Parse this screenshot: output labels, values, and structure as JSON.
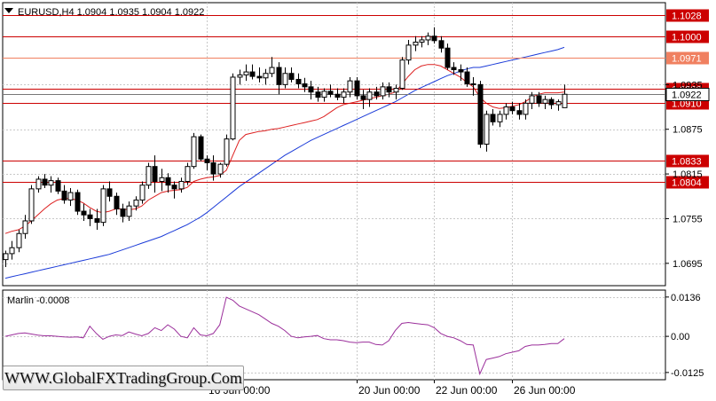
{
  "chart_data": [
    {
      "type": "candlestick",
      "title": "EURUSD,H4  1.0904 1.0935 1.0904 1.0922",
      "symbol": "EURUSD",
      "timeframe": "H4",
      "ohlc_header": "1.0904 1.0935 1.0904 1.0922",
      "ylim": [
        1.0665,
        1.1045
      ],
      "y_ticks": [
        "1.0695",
        "1.0755",
        "1.0815",
        "1.0875",
        "1.0935"
      ],
      "x_ticks": [
        "16 Jun 00:00",
        "20 Jun 00:00",
        "22 Jun 00:00",
        "26 Jun 00:00"
      ],
      "current_price_label": "1.0922",
      "levels": [
        {
          "value": 1.1028,
          "label": "1.1028",
          "color": "#cc0000"
        },
        {
          "value": 1.1,
          "label": "1.1000",
          "color": "#cc0000"
        },
        {
          "value": 1.0971,
          "label": "1.0971",
          "color": "#f08060"
        },
        {
          "value": 1.093,
          "label": "1.0930",
          "color": "#cc0000"
        },
        {
          "value": 1.091,
          "label": "1.0910",
          "color": "#cc0000"
        },
        {
          "value": 1.0833,
          "label": "1.0833",
          "color": "#cc0000"
        },
        {
          "value": 1.0804,
          "label": "1.0804",
          "color": "#cc0000"
        }
      ],
      "candles": [
        [
          1.07,
          1.0712,
          1.069,
          1.0708
        ],
        [
          1.0708,
          1.0725,
          1.07,
          1.0716
        ],
        [
          1.0716,
          1.074,
          1.071,
          1.0735
        ],
        [
          1.0735,
          1.076,
          1.0728,
          1.0752
        ],
        [
          1.0752,
          1.08,
          1.0748,
          1.0795
        ],
        [
          1.0795,
          1.0812,
          1.079,
          1.0808
        ],
        [
          1.0808,
          1.0815,
          1.0796,
          1.08
        ],
        [
          1.08,
          1.0812,
          1.079,
          1.0806
        ],
        [
          1.0806,
          1.081,
          1.0788,
          1.0792
        ],
        [
          1.0792,
          1.08,
          1.0775,
          1.078
        ],
        [
          1.078,
          1.0796,
          1.0772,
          1.079
        ],
        [
          1.079,
          1.0794,
          1.076,
          1.0765
        ],
        [
          1.0765,
          1.0775,
          1.0752,
          1.076
        ],
        [
          1.076,
          1.0768,
          1.0745,
          1.0755
        ],
        [
          1.0755,
          1.0768,
          1.074,
          1.075
        ],
        [
          1.075,
          1.08,
          1.0745,
          1.0795
        ],
        [
          1.0795,
          1.0805,
          1.0778,
          1.0785
        ],
        [
          1.0785,
          1.079,
          1.076,
          1.0768
        ],
        [
          1.0768,
          1.0775,
          1.075,
          1.0758
        ],
        [
          1.0758,
          1.0778,
          1.0752,
          1.0772
        ],
        [
          1.0772,
          1.0785,
          1.0766,
          1.078
        ],
        [
          1.078,
          1.0805,
          1.0775,
          1.08
        ],
        [
          1.08,
          1.083,
          1.0795,
          1.0825
        ],
        [
          1.0825,
          1.084,
          1.079,
          1.0805
        ],
        [
          1.0805,
          1.0822,
          1.0792,
          1.081
        ],
        [
          1.081,
          1.0816,
          1.079,
          1.08
        ],
        [
          1.08,
          1.0805,
          1.0782,
          1.0795
        ],
        [
          1.0795,
          1.081,
          1.079,
          1.0805
        ],
        [
          1.0805,
          1.083,
          1.08,
          1.0825
        ],
        [
          1.0825,
          1.087,
          1.0822,
          1.0865
        ],
        [
          1.0865,
          1.0868,
          1.0832,
          1.0835
        ],
        [
          1.0835,
          1.084,
          1.082,
          1.083
        ],
        [
          1.083,
          1.084,
          1.0806,
          1.0815
        ],
        [
          1.0815,
          1.083,
          1.081,
          1.0828
        ],
        [
          1.0828,
          1.0868,
          1.0825,
          1.0862
        ],
        [
          1.0862,
          1.095,
          1.086,
          1.0945
        ],
        [
          1.0945,
          1.0955,
          1.0935,
          1.0948
        ],
        [
          1.0948,
          1.0962,
          1.094,
          1.0952
        ],
        [
          1.0952,
          1.0962,
          1.0942,
          1.0946
        ],
        [
          1.0946,
          1.0958,
          1.0938,
          1.0944
        ],
        [
          1.0944,
          1.0956,
          1.0935,
          1.095
        ],
        [
          1.095,
          1.0972,
          1.0945,
          1.0958
        ],
        [
          1.0958,
          1.0965,
          1.0922,
          1.0935
        ],
        [
          1.0935,
          1.0958,
          1.093,
          1.095
        ],
        [
          1.095,
          1.0958,
          1.0938,
          1.0942
        ],
        [
          1.0942,
          1.095,
          1.093,
          1.0936
        ],
        [
          1.0936,
          1.0944,
          1.0925,
          1.0932
        ],
        [
          1.0932,
          1.094,
          1.0915,
          1.0925
        ],
        [
          1.0925,
          1.0932,
          1.0912,
          1.0918
        ],
        [
          1.0918,
          1.093,
          1.0912,
          1.0926
        ],
        [
          1.0926,
          1.0935,
          1.0918,
          1.0922
        ],
        [
          1.0922,
          1.093,
          1.0914,
          1.0918
        ],
        [
          1.0918,
          1.093,
          1.091,
          1.0925
        ],
        [
          1.0925,
          1.0945,
          1.0918,
          1.094
        ],
        [
          1.094,
          1.0945,
          1.0915,
          1.092
        ],
        [
          1.092,
          1.0928,
          1.0902,
          1.0915
        ],
        [
          1.0915,
          1.093,
          1.0905,
          1.0925
        ],
        [
          1.0925,
          1.0932,
          1.0915,
          1.092
        ],
        [
          1.092,
          1.0938,
          1.0915,
          1.0932
        ],
        [
          1.0932,
          1.0938,
          1.0918,
          1.0925
        ],
        [
          1.0925,
          1.0935,
          1.0915,
          1.093
        ],
        [
          1.093,
          1.0972,
          1.0928,
          1.0968
        ],
        [
          1.0968,
          1.0995,
          1.0962,
          1.0988
        ],
        [
          1.0988,
          1.1,
          1.098,
          1.0992
        ],
        [
          1.0992,
          1.1,
          1.0985,
          1.0995
        ],
        [
          1.0995,
          1.1005,
          1.0988,
          1.1
        ],
        [
          1.1,
          1.1012,
          1.099,
          1.0994
        ],
        [
          1.0994,
          1.1,
          1.0978,
          1.0984
        ],
        [
          1.0984,
          1.099,
          1.0955,
          1.0958
        ],
        [
          1.0958,
          1.0965,
          1.0948,
          1.0955
        ],
        [
          1.0955,
          1.0962,
          1.094,
          1.0952
        ],
        [
          1.0952,
          1.0958,
          1.0932,
          1.0936
        ],
        [
          1.0936,
          1.0945,
          1.092,
          1.0935
        ],
        [
          1.0935,
          1.094,
          1.085,
          1.0855
        ],
        [
          1.0855,
          1.09,
          1.0845,
          1.0895
        ],
        [
          1.0895,
          1.0902,
          1.088,
          1.0885
        ],
        [
          1.0885,
          1.09,
          1.0878,
          1.0895
        ],
        [
          1.0895,
          1.091,
          1.0888,
          1.0905
        ],
        [
          1.0905,
          1.0912,
          1.0895,
          1.09
        ],
        [
          1.09,
          1.091,
          1.0888,
          1.0895
        ],
        [
          1.0895,
          1.0915,
          1.0888,
          1.091
        ],
        [
          1.091,
          1.0925,
          1.0902,
          1.092
        ],
        [
          1.092,
          1.0925,
          1.0905,
          1.091
        ],
        [
          1.091,
          1.092,
          1.0902,
          1.0915
        ],
        [
          1.0915,
          1.0918,
          1.0902,
          1.0908
        ],
        [
          1.0908,
          1.0915,
          1.09,
          1.0912
        ],
        [
          1.0904,
          1.0935,
          1.0904,
          1.0922
        ]
      ],
      "ma_fast_red": [
        1.0735,
        1.0738,
        1.074,
        1.0745,
        1.0752,
        1.076,
        1.0768,
        1.0775,
        1.078,
        1.0782,
        1.0782,
        1.078,
        1.0776,
        1.077,
        1.0765,
        1.0763,
        1.0765,
        1.0768,
        1.0768,
        1.0767,
        1.0768,
        1.0772,
        1.078,
        1.0785,
        1.079,
        1.0792,
        1.0793,
        1.0794,
        1.0797,
        1.0805,
        1.0808,
        1.081,
        1.0811,
        1.0813,
        1.082,
        1.084,
        1.086,
        1.0868,
        1.087,
        1.0872,
        1.0873,
        1.0875,
        1.0876,
        1.0878,
        1.088,
        1.0882,
        1.0884,
        1.0886,
        1.0888,
        1.0892,
        1.0898,
        1.0904,
        1.0908,
        1.091,
        1.0912,
        1.0914,
        1.0916,
        1.0918,
        1.092,
        1.0922,
        1.0925,
        1.0935,
        1.0946,
        1.0955,
        1.096,
        1.0962,
        1.0962,
        1.096,
        1.0955,
        1.095,
        1.0945,
        1.0938,
        1.0932,
        1.0918,
        1.091,
        1.0905,
        1.0903,
        1.0904,
        1.0906,
        1.0908,
        1.0912,
        1.0918,
        1.0922,
        1.0924,
        1.0924,
        1.0924,
        1.0925
      ],
      "ma_slow_blue": [
        1.0675,
        1.0677,
        1.0679,
        1.0681,
        1.0683,
        1.0685,
        1.0687,
        1.0689,
        1.0691,
        1.0693,
        1.0695,
        1.0697,
        1.0699,
        1.0701,
        1.0703,
        1.0705,
        1.0707,
        1.071,
        1.0713,
        1.0716,
        1.0719,
        1.0722,
        1.0725,
        1.0728,
        1.0731,
        1.0735,
        1.0739,
        1.0743,
        1.0747,
        1.0752,
        1.0757,
        1.0763,
        1.077,
        1.0777,
        1.0784,
        1.0791,
        1.0798,
        1.0804,
        1.081,
        1.0816,
        1.0822,
        1.0828,
        1.0834,
        1.084,
        1.0845,
        1.085,
        1.0855,
        1.086,
        1.0864,
        1.0868,
        1.0872,
        1.0876,
        1.088,
        1.0884,
        1.0888,
        1.0892,
        1.0896,
        1.09,
        1.0904,
        1.0908,
        1.0912,
        1.0917,
        1.0922,
        1.0927,
        1.0931,
        1.0935,
        1.0939,
        1.0943,
        1.0947,
        1.095,
        1.0953,
        1.0956,
        1.0958,
        1.0958,
        1.096,
        1.0962,
        1.0964,
        1.0966,
        1.0968,
        1.097,
        1.0972,
        1.0974,
        1.0976,
        1.0978,
        1.098,
        1.0982,
        1.0985
      ]
    },
    {
      "type": "line",
      "title": "Marlin -0.0008",
      "indicator": "Marlin",
      "indicator_value": "-0.0008",
      "ylim": [
        -0.015,
        0.016
      ],
      "y_ticks": [
        "0.0136",
        "0.00",
        "-0.0125"
      ],
      "values": [
        0.0,
        0.0005,
        0.001,
        0.0012,
        0.0008,
        0.0004,
        0.0002,
        0.0002,
        0.0,
        -0.0002,
        -0.0003,
        -0.0002,
        -0.0005,
        0.0035,
        0.001,
        -0.001,
        0.0,
        0.0005,
        0.0003,
        0.0015,
        0.0008,
        0.0002,
        0.001,
        0.003,
        0.002,
        0.004,
        0.0025,
        0.0,
        -0.0005,
        0.003,
        0.0005,
        0.0002,
        0.001,
        0.004,
        0.0135,
        0.0125,
        0.0105,
        0.0095,
        0.0085,
        0.0075,
        0.006,
        0.0045,
        0.0035,
        0.002,
        0.0,
        -0.0005,
        -0.0002,
        0.0,
        0.0003,
        -0.0008,
        -0.0012,
        -0.0012,
        -0.0015,
        -0.002,
        -0.0022,
        -0.002,
        -0.002,
        -0.0028,
        -0.003,
        -0.0015,
        0.002,
        0.0045,
        0.0048,
        0.0045,
        0.0042,
        0.004,
        0.003,
        0.001,
        0.0,
        -0.0005,
        -0.0015,
        -0.0028,
        -0.003,
        -0.013,
        -0.008,
        -0.0075,
        -0.007,
        -0.006,
        -0.0055,
        -0.005,
        -0.0035,
        -0.003,
        -0.003,
        -0.0028,
        -0.0025,
        -0.0025,
        -0.0008
      ]
    }
  ],
  "watermark": "WWW.GlobalFXTradingGroup.Com",
  "colors": {
    "ma_fast": "#dd2020",
    "ma_slow": "#1a3ad8",
    "level": "#cc0000",
    "level_light": "#f08060",
    "indicator": "#9b2f9b",
    "grid": "#c8c8c8"
  }
}
